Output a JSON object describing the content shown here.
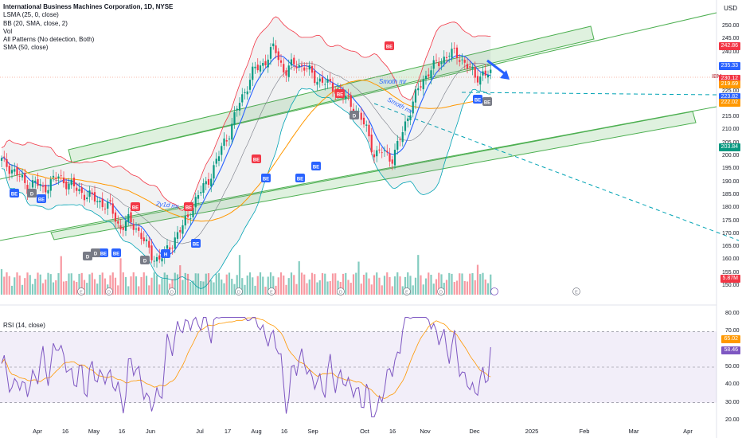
{
  "legend": {
    "title": "International Business Machines Corporation, 1D, NYSE",
    "items": [
      "LSMA (25, 0, close)",
      "BB (20, SMA, close, 2)",
      "Vol",
      "All Patterns (No detection, Both)",
      "SMA (50, close)"
    ]
  },
  "rsi_legend": "RSI (14, close)",
  "currency": "USD",
  "price_axis_labels": [
    "250.00",
    "245.00",
    "240.00",
    "235.00",
    "230.00",
    "225.00",
    "220.00",
    "215.00",
    "210.00",
    "205.00",
    "200.00",
    "195.00",
    "190.00",
    "185.00",
    "180.00",
    "175.00",
    "170.00",
    "165.00",
    "160.00",
    "155.00",
    "150.00"
  ],
  "price_tags": [
    {
      "text": "242.86",
      "color": "#f23645"
    },
    {
      "text": "235.33",
      "color": "#2962ff"
    },
    {
      "text": "230.12",
      "color": "#f23645"
    },
    {
      "text": "219.69",
      "color": "#ff9800"
    },
    {
      "text": "223.82",
      "color": "#2962ff"
    },
    {
      "text": "222.02",
      "color": "#ff9800"
    },
    {
      "text": "203.84",
      "color": "#089981"
    },
    {
      "text": "5.87M",
      "color": "#f23645"
    }
  ],
  "ibm_label": "IBM",
  "rsi_axis_labels": [
    "80.00",
    "70.00",
    "60.00",
    "50.00",
    "40.00",
    "30.00",
    "20.00"
  ],
  "rsi_tags": [
    {
      "text": "65.02",
      "color": "#ff9800"
    },
    {
      "text": "58.46",
      "color": "#7e57c2"
    }
  ],
  "time_axis": [
    "Apr",
    "16",
    "May",
    "16",
    "Jun",
    "Jul",
    "17",
    "Aug",
    "16",
    "Sep",
    "Oct",
    "16",
    "Nov",
    "Dec",
    "2025",
    "Feb",
    "Mar",
    "Apr"
  ],
  "annotations": {
    "smooth_upper": "Smoth mr",
    "smooth_lower": "Smoth mr",
    "sma_label": "2y1d mr"
  },
  "pattern_markers": [
    "BE",
    "BE",
    "BE",
    "BE",
    "BE",
    "BE",
    "BE",
    "BE",
    "BE",
    "BE",
    "BE",
    "BE",
    "BE",
    "BE",
    "D",
    "D",
    "D",
    "D",
    "D",
    "H",
    "BE",
    "BE",
    "BE",
    "BE",
    "BE",
    "BE",
    "D"
  ],
  "event_markers": [
    "E",
    "D",
    "D",
    "D",
    "E",
    "D",
    "E",
    "D",
    "E"
  ],
  "colors": {
    "up": "#089981",
    "down": "#f23645",
    "channel": "#4caf50",
    "bb": "#f23645",
    "lsma": "#2962ff",
    "sma": "#ff9800",
    "rsi": "#7e57c2",
    "trend_dash": "#00a3b4"
  },
  "chart_data": {
    "type": "candlestick",
    "title": "International Business Machines Corporation, 1D, NYSE",
    "last_price": 230.12,
    "currency": "USD",
    "price_range": [
      150,
      250
    ],
    "rsi_range": [
      20,
      80
    ],
    "rsi_levels": [
      30,
      50,
      70
    ],
    "rsi_last": 58.46,
    "rsi_ma_last": 65.02,
    "volume_last": "5.87M"
  }
}
